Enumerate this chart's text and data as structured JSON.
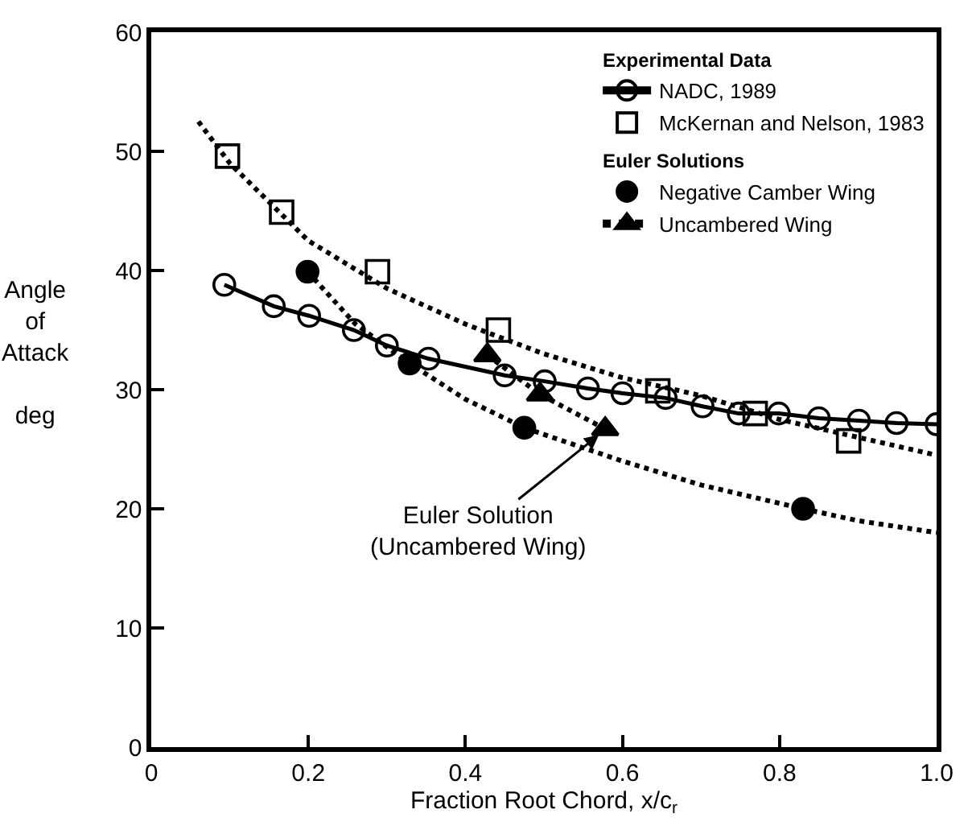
{
  "chart_data": {
    "type": "line",
    "xlabel": "Fraction Root Chord, x/c$_{r}$",
    "ylabel": "Angle\nof\nAttack\n\ndeg",
    "xlim": [
      0,
      1.0
    ],
    "ylim": [
      0,
      60
    ],
    "xticks": [
      0,
      0.2,
      0.4,
      0.6,
      0.8,
      {
        "value": 1.0,
        "label": "1.0"
      }
    ],
    "yticks": [
      0,
      10,
      20,
      30,
      40,
      50,
      60
    ],
    "legend": "top right",
    "annotations": [
      "Experimental Data",
      "Euler Solutions",
      {
        "text": "Euler Solution\n(Uncambered Wing)",
        "x": 0.57,
        "y": 26.2
      }
    ],
    "series": [
      {
        "name": "NADC, 1989",
        "marker": "circle",
        "line_style": "solid",
        "color": "#000000",
        "x": [
          0.093,
          0.156,
          0.201,
          0.258,
          0.3,
          0.353,
          0.45,
          0.501,
          0.556,
          0.6,
          0.655,
          0.702,
          0.748,
          0.799,
          0.85,
          0.901,
          0.949,
          1.0
        ],
        "values": [
          38.8,
          37.0,
          36.2,
          35.0,
          33.7,
          32.6,
          31.2,
          30.7,
          30.1,
          29.7,
          29.3,
          28.6,
          28.0,
          28.0,
          27.6,
          27.4,
          27.2,
          27.1
        ]
      },
      {
        "name": "McKernan and Nelson, 1983",
        "type": "scatter",
        "marker": "square",
        "color": "#000000",
        "x": [
          0.097,
          0.166,
          0.288,
          0.442,
          0.645,
          0.769,
          0.888
        ],
        "values": [
          49.6,
          44.9,
          39.9,
          35.0,
          29.9,
          28.0,
          25.7
        ]
      },
      {
        "name": "Negative Camber Wing",
        "type": "scatter",
        "marker": "circle",
        "color": "#000000",
        "x": [
          0.199,
          0.329,
          0.475,
          0.83
        ],
        "values": [
          39.9,
          32.2,
          26.8,
          20.0
        ]
      },
      {
        "name": "Uncambered Wing",
        "marker": "triangle",
        "line_style": "dotted",
        "color": "#000000",
        "x": [
          0.428,
          0.495,
          0.578
        ],
        "values": [
          32.9,
          29.6,
          26.7
        ]
      },
      {
        "marker": "none",
        "line_style": "dotted",
        "color": "#000000",
        "x": [
          0.06,
          0.1,
          0.2,
          0.3,
          0.4,
          0.5,
          0.6,
          0.7,
          0.8,
          0.9,
          1.0
        ],
        "values": [
          52.5,
          49.0,
          42.5,
          38.5,
          35.5,
          33.0,
          31.0,
          29.5,
          27.5,
          26.0,
          24.5
        ]
      },
      {
        "marker": "none",
        "line_style": "dotted",
        "color": "#000000",
        "x": [
          0.199,
          0.26,
          0.329,
          0.4,
          0.475,
          0.6,
          0.7,
          0.83,
          0.9,
          1.0
        ],
        "values": [
          39.9,
          35.5,
          32.2,
          29.2,
          26.8,
          24.0,
          22.0,
          20.0,
          19.0,
          18.0
        ]
      }
    ]
  }
}
